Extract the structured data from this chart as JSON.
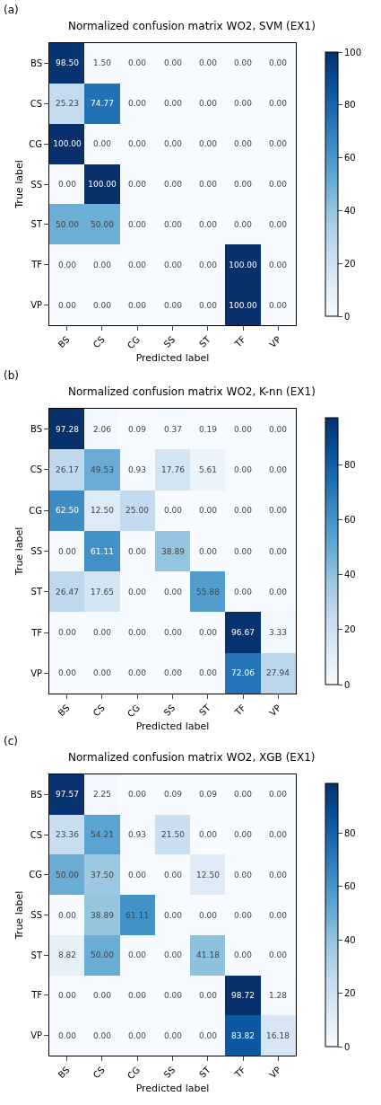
{
  "chart_data": [
    {
      "type": "heatmap",
      "title": "Normalized confusion matrix WO2, SVM (EX1)",
      "xlabel": "Predicted label",
      "ylabel": "True label",
      "annotations": [
        "(a)"
      ],
      "categories": [
        "BS",
        "CS",
        "CG",
        "SS",
        "ST",
        "TF",
        "VP"
      ],
      "y_categories": [
        "BS",
        "CS",
        "CG",
        "SS",
        "ST",
        "TF",
        "VP"
      ],
      "cells": [
        [
          98.5,
          1.5,
          0,
          0,
          0,
          0,
          0
        ],
        [
          25.23,
          74.77,
          0,
          0,
          0,
          0,
          0
        ],
        [
          100,
          0,
          0,
          0,
          0,
          0,
          0
        ],
        [
          0,
          100,
          0,
          0,
          0,
          0,
          0
        ],
        [
          50,
          50,
          0,
          0,
          0,
          0,
          0
        ],
        [
          0,
          0,
          0,
          0,
          0,
          100,
          0
        ],
        [
          0,
          0,
          0,
          0,
          0,
          100,
          0
        ]
      ],
      "cell_labels": [
        [
          "98.50",
          "1.50",
          "0.00",
          "0.00",
          "0.00",
          "0.00",
          "0.00"
        ],
        [
          "25.23",
          "74.77",
          "0.00",
          "0.00",
          "0.00",
          "0.00",
          "0.00"
        ],
        [
          "100.00",
          "0.00",
          "0.00",
          "0.00",
          "0.00",
          "0.00",
          "0.00"
        ],
        [
          "0.00",
          "100.00",
          "0.00",
          "0.00",
          "0.00",
          "0.00",
          "0.00"
        ],
        [
          "50.00",
          "50.00",
          "0.00",
          "0.00",
          "0.00",
          "0.00",
          "0.00"
        ],
        [
          "0.00",
          "0.00",
          "0.00",
          "0.00",
          "0.00",
          "100.00",
          "0.00"
        ],
        [
          "0.00",
          "0.00",
          "0.00",
          "0.00",
          "0.00",
          "100.00",
          "0.00"
        ]
      ],
      "clim": [
        0,
        100
      ],
      "cticks": [
        0,
        20,
        40,
        60,
        80,
        100
      ]
    },
    {
      "type": "heatmap",
      "title": "Normalized confusion matrix WO2, K-nn (EX1)",
      "xlabel": "Predicted label",
      "ylabel": "True label",
      "annotations": [
        "(b)"
      ],
      "categories": [
        "BS",
        "CS",
        "CG",
        "SS",
        "ST",
        "TF",
        "VP"
      ],
      "y_categories": [
        "BS",
        "CS",
        "CG",
        "SS",
        "ST",
        "TF",
        "VP"
      ],
      "cells": [
        [
          97.28,
          2.06,
          0.09,
          0.37,
          0.19,
          0,
          0
        ],
        [
          26.17,
          49.53,
          0.93,
          17.76,
          5.61,
          0,
          0
        ],
        [
          62.5,
          12.5,
          25,
          0,
          0,
          0,
          0
        ],
        [
          0,
          61.11,
          0,
          38.89,
          0,
          0,
          0
        ],
        [
          26.47,
          17.65,
          0,
          0,
          55.88,
          0,
          0
        ],
        [
          0,
          0,
          0,
          0,
          0,
          96.67,
          3.33
        ],
        [
          0,
          0,
          0,
          0,
          0,
          72.06,
          27.94
        ]
      ],
      "cell_labels": [
        [
          "97.28",
          "2.06",
          "0.09",
          "0.37",
          "0.19",
          "0.00",
          "0.00"
        ],
        [
          "26.17",
          "49.53",
          "0.93",
          "17.76",
          "5.61",
          "0.00",
          "0.00"
        ],
        [
          "62.50",
          "12.50",
          "25.00",
          "0.00",
          "0.00",
          "0.00",
          "0.00"
        ],
        [
          "0.00",
          "61.11",
          "0.00",
          "38.89",
          "0.00",
          "0.00",
          "0.00"
        ],
        [
          "26.47",
          "17.65",
          "0.00",
          "0.00",
          "55.88",
          "0.00",
          "0.00"
        ],
        [
          "0.00",
          "0.00",
          "0.00",
          "0.00",
          "0.00",
          "96.67",
          "3.33"
        ],
        [
          "0.00",
          "0.00",
          "0.00",
          "0.00",
          "0.00",
          "72.06",
          "27.94"
        ]
      ],
      "clim": [
        0,
        97.28
      ],
      "cticks": [
        0,
        20,
        40,
        60,
        80
      ]
    },
    {
      "type": "heatmap",
      "title": "Normalized confusion matrix WO2, XGB (EX1)",
      "xlabel": "Predicted label",
      "ylabel": "True label",
      "annotations": [
        "(c)"
      ],
      "categories": [
        "BS",
        "CS",
        "CG",
        "SS",
        "ST",
        "TF",
        "VP"
      ],
      "y_categories": [
        "BS",
        "CS",
        "CG",
        "SS",
        "ST",
        "TF",
        "VP"
      ],
      "cells": [
        [
          97.57,
          2.25,
          0,
          0.09,
          0.09,
          0,
          0
        ],
        [
          23.36,
          54.21,
          0.93,
          21.5,
          0,
          0,
          0
        ],
        [
          50,
          37.5,
          0,
          0,
          12.5,
          0,
          0
        ],
        [
          0,
          38.89,
          61.11,
          0,
          0,
          0,
          0
        ],
        [
          8.82,
          50,
          0,
          0,
          41.18,
          0,
          0
        ],
        [
          0,
          0,
          0,
          0,
          0,
          98.72,
          1.28
        ],
        [
          0,
          0,
          0,
          0,
          0,
          83.82,
          16.18
        ]
      ],
      "cell_labels": [
        [
          "97.57",
          "2.25",
          "0.00",
          "0.09",
          "0.09",
          "0.00",
          "0.00"
        ],
        [
          "23.36",
          "54.21",
          "0.93",
          "21.50",
          "0.00",
          "0.00",
          "0.00"
        ],
        [
          "50.00",
          "37.50",
          "0.00",
          "0.00",
          "12.50",
          "0.00",
          "0.00"
        ],
        [
          "0.00",
          "38.89",
          "61.11",
          "0.00",
          "0.00",
          "0.00",
          "0.00"
        ],
        [
          "8.82",
          "50.00",
          "0.00",
          "0.00",
          "41.18",
          "0.00",
          "0.00"
        ],
        [
          "0.00",
          "0.00",
          "0.00",
          "0.00",
          "0.00",
          "98.72",
          "1.28"
        ],
        [
          "0.00",
          "0.00",
          "0.00",
          "0.00",
          "0.00",
          "83.82",
          "16.18"
        ]
      ],
      "clim": [
        0,
        98.72
      ],
      "cticks": [
        0,
        20,
        40,
        60,
        80
      ]
    }
  ]
}
